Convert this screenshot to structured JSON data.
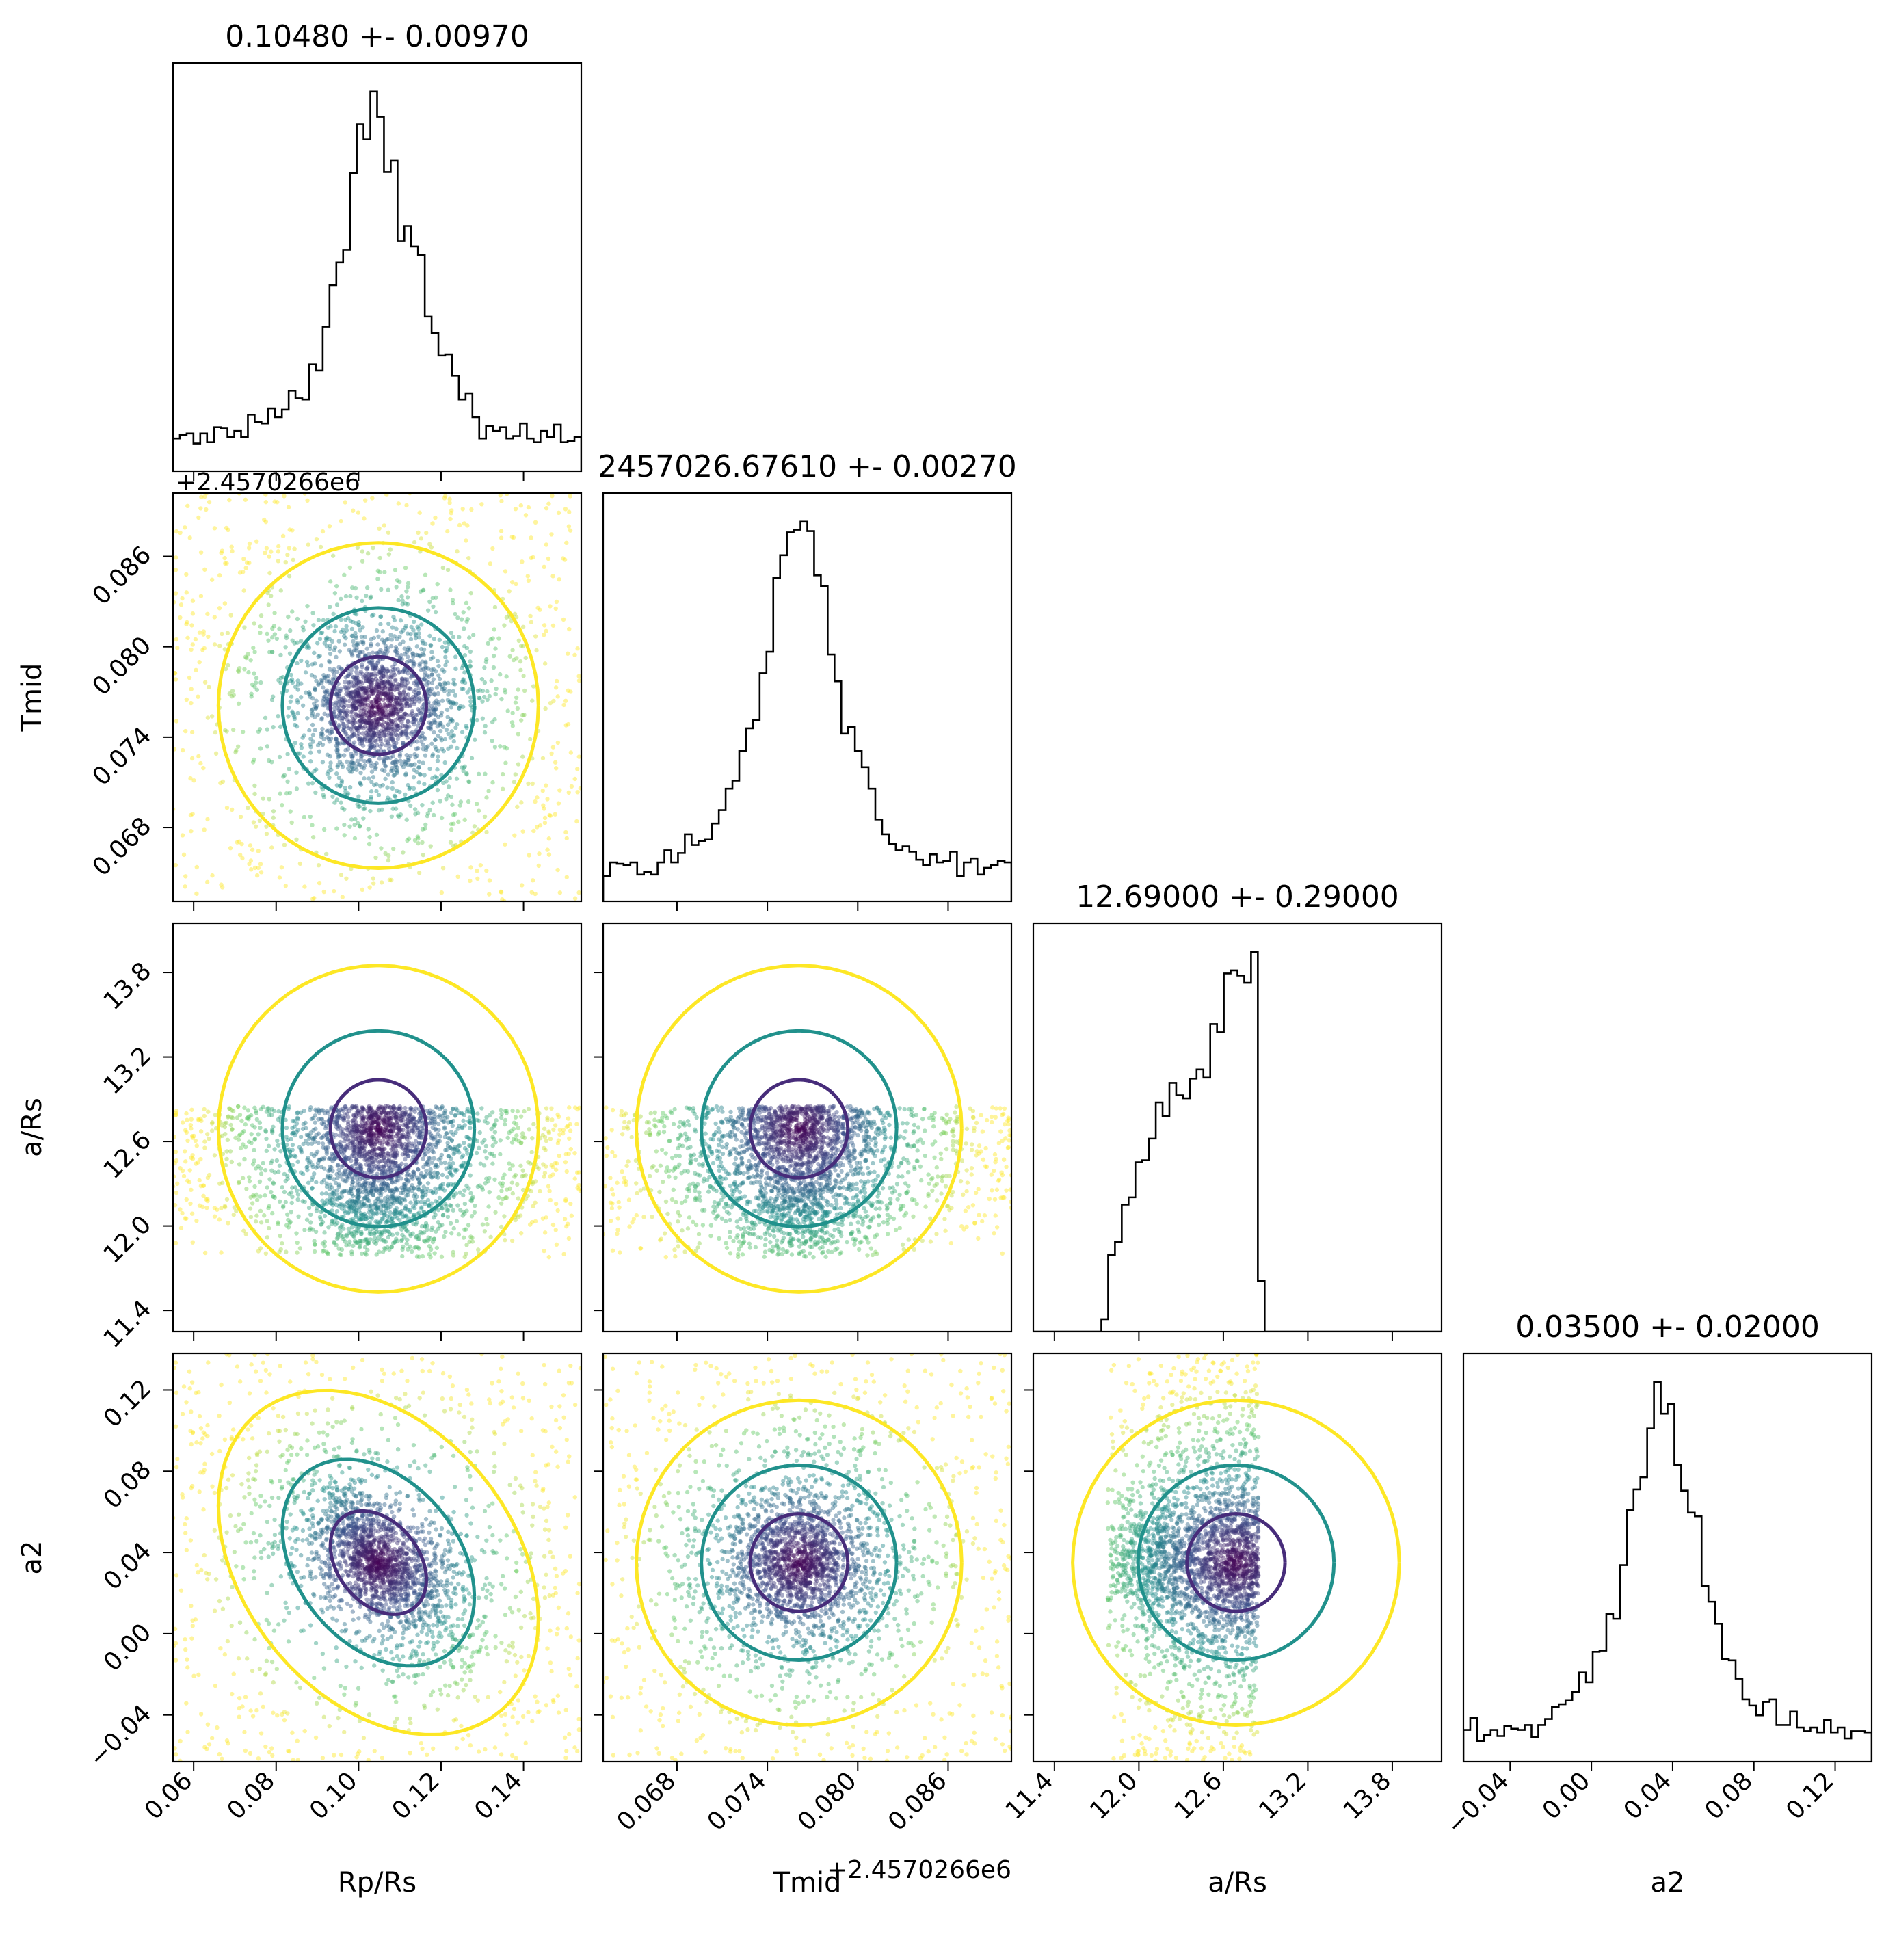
{
  "chart_data": {
    "type": "corner",
    "parameters": [
      {
        "key": "rp",
        "label_html": "R<tspan font-size='0.7em' baseline-shift='sub' font-style='italic'>p</tspan>/R<tspan font-size='0.7em' baseline-shift='sub' font-style='italic'>s</tspan>",
        "label_text": "Rp/Rs",
        "title": "0.10480 +- 0.00970",
        "mean": 0.1048,
        "sigma": 0.0097,
        "range": [
          0.055,
          0.154
        ],
        "ticks": [
          0.06,
          0.08,
          0.1,
          0.12,
          0.14
        ],
        "tick_labels": [
          "0.06",
          "0.08",
          "0.10",
          "0.12",
          "0.14"
        ],
        "offset_text": ""
      },
      {
        "key": "tmid",
        "label_text": "Tmid",
        "title": "2457026.67610 +- 0.00270",
        "mean": 0.0761,
        "sigma": 0.0027,
        "range": [
          0.0631,
          0.0902
        ],
        "ticks": [
          0.068,
          0.074,
          0.08,
          0.086
        ],
        "tick_labels": [
          "0.068",
          "0.074",
          "0.080",
          "0.086"
        ],
        "offset_text": "+2.4570266e6"
      },
      {
        "key": "ars",
        "label_text": "a/Rs",
        "title": "12.69000 +- 0.29000",
        "mean": 12.69,
        "sigma": 0.29,
        "range": [
          11.25,
          14.15
        ],
        "ticks": [
          11.4,
          12.0,
          12.6,
          13.2,
          13.8
        ],
        "tick_labels": [
          "11.4",
          "12.0",
          "12.6",
          "13.2",
          "13.8"
        ],
        "offset_text": ""
      },
      {
        "key": "a2",
        "label_text": "a2",
        "title": "0.03500 +- 0.02000",
        "mean": 0.035,
        "sigma": 0.02,
        "range": [
          -0.063,
          0.138
        ],
        "ticks": [
          -0.04,
          0.0,
          0.04,
          0.08,
          0.12
        ],
        "tick_labels": [
          "−0.04",
          "0.00",
          "0.04",
          "0.08",
          "0.12"
        ],
        "offset_text": ""
      }
    ],
    "scatter_colormap": "viridis",
    "contour_colors": [
      "#472c7a",
      "#21918c",
      "#fde725"
    ],
    "histogram_color": "#000000"
  }
}
